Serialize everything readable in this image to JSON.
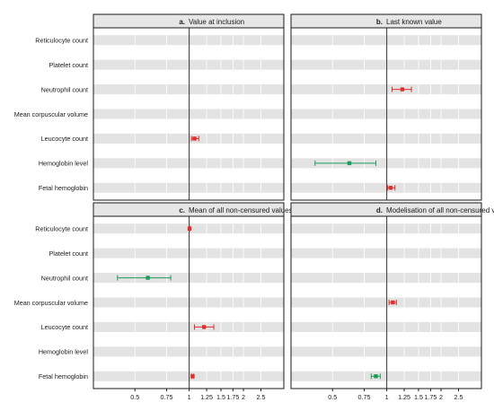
{
  "colors": {
    "red": "#e02d2d",
    "green": "#1e9a5a",
    "band": "#e3e3e3",
    "strip": "#e6e6e6",
    "ref_line": "#333333",
    "border": "#1a1a1a"
  },
  "chart_data": {
    "type": "forest-plot",
    "scale": "log",
    "reference_value": 1,
    "xlim": [
      0.33,
      3.2
    ],
    "x_ticks": [
      0.5,
      0.75,
      1,
      1.25,
      1.5,
      1.75,
      2,
      2.5
    ],
    "x_tick_labels": [
      "0.5",
      "0.75",
      "1",
      "1.25",
      "1.5",
      "1.75",
      "2",
      "2.5"
    ],
    "row_labels": [
      "Reticulocyte count",
      "Platelet count",
      "Neutrophil count",
      "Mean corpuscular volume",
      "Leucocyte count",
      "Hemoglobin level",
      "Fetal hemoglobin"
    ],
    "panels": [
      {
        "id": "a",
        "title_letter": "a.",
        "title_text": "Value at inclusion",
        "estimates": [
          {
            "row": "Leucocyte count",
            "value": 1.07,
            "lo": 1.03,
            "hi": 1.13,
            "color": "red"
          }
        ]
      },
      {
        "id": "b",
        "title_letter": "b.",
        "title_text": "Last known value",
        "estimates": [
          {
            "row": "Neutrophil count",
            "value": 1.22,
            "lo": 1.07,
            "hi": 1.37,
            "color": "red"
          },
          {
            "row": "Hemoglobin level",
            "value": 0.62,
            "lo": 0.4,
            "hi": 0.87,
            "color": "green"
          },
          {
            "row": "Fetal hemoglobin",
            "value": 1.05,
            "lo": 1.01,
            "hi": 1.11,
            "color": "red"
          }
        ]
      },
      {
        "id": "c",
        "title_letter": "c.",
        "title_text": "Mean of all non-censured values",
        "estimates": [
          {
            "row": "Reticulocyte count",
            "value": 1.005,
            "lo": 1.0,
            "hi": 1.01,
            "color": "red"
          },
          {
            "row": "Neutrophil count",
            "value": 0.59,
            "lo": 0.4,
            "hi": 0.79,
            "color": "green"
          },
          {
            "row": "Leucocyte count",
            "value": 1.21,
            "lo": 1.07,
            "hi": 1.37,
            "color": "red"
          },
          {
            "row": "Fetal hemoglobin",
            "value": 1.045,
            "lo": 1.03,
            "hi": 1.06,
            "color": "red"
          }
        ]
      },
      {
        "id": "d",
        "title_letter": "d.",
        "title_text": "Modelisation of all non-censured values",
        "estimates": [
          {
            "row": "Mean corpuscular volume",
            "value": 1.08,
            "lo": 1.03,
            "hi": 1.13,
            "color": "red"
          },
          {
            "row": "Fetal hemoglobin",
            "value": 0.87,
            "lo": 0.82,
            "hi": 0.92,
            "color": "green"
          }
        ]
      }
    ]
  }
}
